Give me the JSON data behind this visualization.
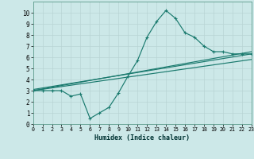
{
  "xlabel": "Humidex (Indice chaleur)",
  "xlim": [
    0,
    23
  ],
  "ylim": [
    0,
    11
  ],
  "xticks": [
    0,
    1,
    2,
    3,
    4,
    5,
    6,
    7,
    8,
    9,
    10,
    11,
    12,
    13,
    14,
    15,
    16,
    17,
    18,
    19,
    20,
    21,
    22,
    23
  ],
  "yticks": [
    0,
    1,
    2,
    3,
    4,
    5,
    6,
    7,
    8,
    9,
    10
  ],
  "bg_color": "#cce8e8",
  "grid_color": "#b8d4d4",
  "line_color": "#1a7a6e",
  "line1_x": [
    0,
    1,
    2,
    3,
    4,
    5,
    6,
    7,
    8,
    9,
    10,
    11,
    12,
    13,
    14,
    15,
    16,
    17,
    18,
    19,
    20,
    21,
    22,
    23
  ],
  "line1_y": [
    3.0,
    3.0,
    3.0,
    3.0,
    2.5,
    2.7,
    0.5,
    1.0,
    1.5,
    2.8,
    4.3,
    5.7,
    7.8,
    9.2,
    10.2,
    9.5,
    8.2,
    7.8,
    7.0,
    6.5,
    6.5,
    6.3,
    6.3,
    6.3
  ],
  "line2_x": [
    0,
    23
  ],
  "line2_y": [
    3.0,
    6.5
  ],
  "line3_x": [
    0,
    23
  ],
  "line3_y": [
    3.1,
    6.3
  ],
  "line4_x": [
    0,
    23
  ],
  "line4_y": [
    3.0,
    5.8
  ]
}
